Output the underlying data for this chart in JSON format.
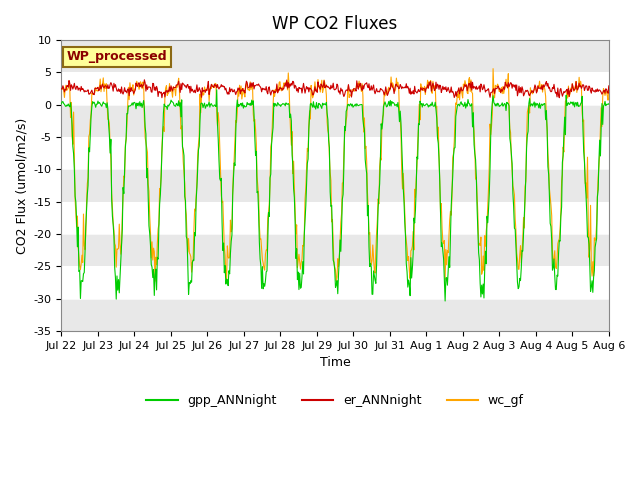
{
  "title": "WP CO2 Fluxes",
  "xlabel": "Time",
  "ylabel": "CO2 Flux (umol/m2/s)",
  "ylim": [
    -35,
    10
  ],
  "yticks": [
    -35,
    -30,
    -25,
    -20,
    -15,
    -10,
    -5,
    0,
    5,
    10
  ],
  "annotation_text": "WP_processed",
  "annotation_bg": "#FFFF99",
  "annotation_fg": "#8B0000",
  "legend_labels": [
    "gpp_ANNnight",
    "er_ANNnight",
    "wc_gf"
  ],
  "colors": [
    "#00CC00",
    "#CC0000",
    "#FFA500"
  ],
  "line_width": 0.8,
  "bg_band_color": "#D3D3D3",
  "fig_bg": "#FFFFFF",
  "xtick_labels": [
    "Jul 22",
    "Jul 23",
    "Jul 24",
    "Jul 25",
    "Jul 26",
    "Jul 27",
    "Jul 28",
    "Jul 29",
    "Jul 30",
    "Jul 31",
    "Aug 1",
    "Aug 2",
    "Aug 3",
    "Aug 4",
    "Aug 5",
    "Aug 6"
  ],
  "n_days": 15,
  "points_per_day": 48,
  "seed": 42
}
